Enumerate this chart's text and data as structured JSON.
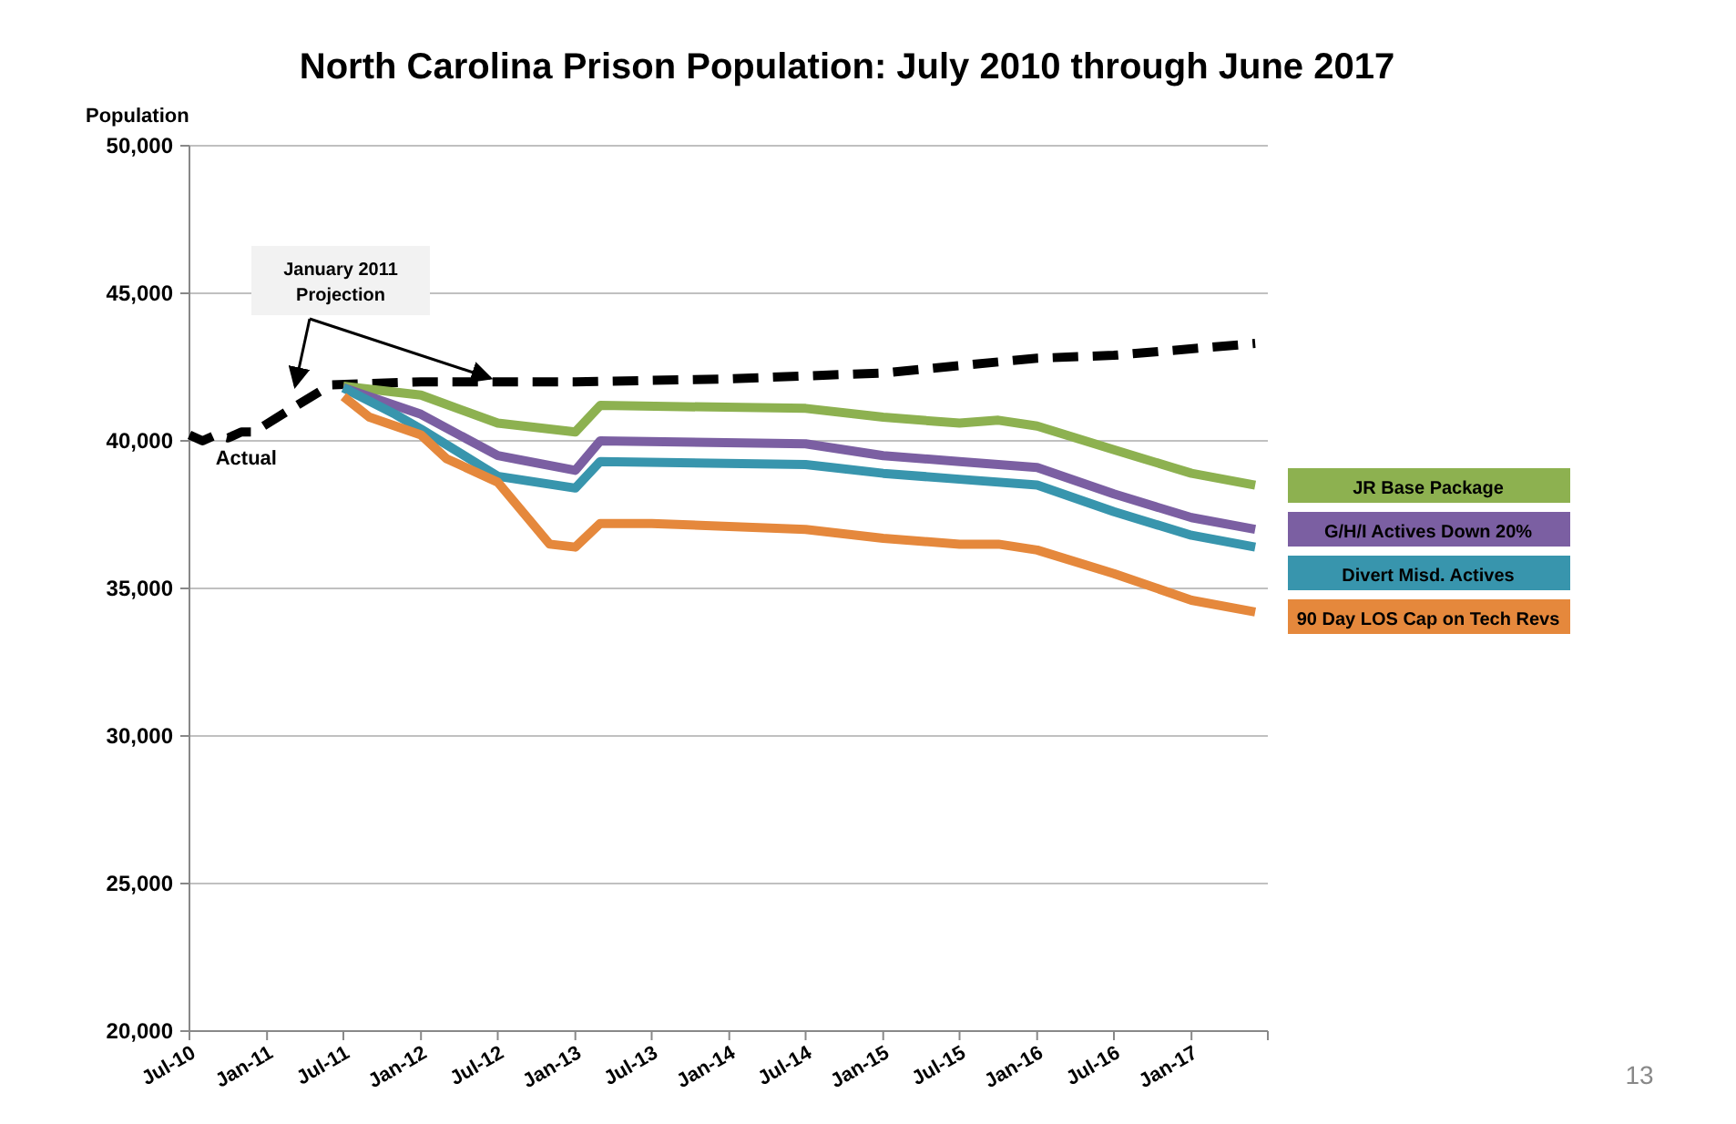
{
  "chart_data": {
    "type": "line",
    "title": "North Carolina Prison Population: July 2010 through June 2017",
    "ylabel": "Population",
    "xlim": [
      "2010-07",
      "2017-07"
    ],
    "xticks": [
      {
        "value": "2010-07",
        "label": "Jul-10"
      },
      {
        "value": "2011-01",
        "label": "Jan-11"
      },
      {
        "value": "2011-07",
        "label": "Jul-11"
      },
      {
        "value": "2012-01",
        "label": "Jan-12"
      },
      {
        "value": "2012-07",
        "label": "Jul-12"
      },
      {
        "value": "2013-01",
        "label": "Jan-13"
      },
      {
        "value": "2013-07",
        "label": "Jul-13"
      },
      {
        "value": "2014-01",
        "label": "Jan-14"
      },
      {
        "value": "2014-07",
        "label": "Jul-14"
      },
      {
        "value": "2015-01",
        "label": "Jan-15"
      },
      {
        "value": "2015-07",
        "label": "Jul-15"
      },
      {
        "value": "2016-01",
        "label": "Jan-16"
      },
      {
        "value": "2016-07",
        "label": "Jul-16"
      },
      {
        "value": "2017-01",
        "label": "Jan-17"
      },
      {
        "value": "2017-07",
        "label": null
      }
    ],
    "ylim": [
      20000,
      50000
    ],
    "yticks": [
      {
        "value": 20000,
        "label": "20,000"
      },
      {
        "value": 25000,
        "label": "25,000"
      },
      {
        "value": 30000,
        "label": "30,000"
      },
      {
        "value": 35000,
        "label": "35,000"
      },
      {
        "value": 40000,
        "label": "40,000"
      },
      {
        "value": 45000,
        "label": "45,000"
      },
      {
        "value": 50000,
        "label": "50,000"
      }
    ],
    "grid": "y",
    "legend": "right",
    "series": [
      {
        "color": "#000000",
        "line_style": "dashed",
        "x": [
          "2010-07",
          "2010-08",
          "2010-09",
          "2010-10",
          "2010-11",
          "2010-12",
          "2011-03",
          "2011-06",
          "2012-01",
          "2013-01",
          "2014-01",
          "2015-01",
          "2016-01",
          "2016-07",
          "2017-06"
        ],
        "values": [
          40200,
          40000,
          40200,
          40100,
          40300,
          40300,
          41100,
          41900,
          42000,
          42000,
          42100,
          42300,
          42800,
          42900,
          43300
        ]
      },
      {
        "name": "JR Base Package",
        "color": "#8db150",
        "line_style": "solid",
        "x": [
          "2011-07",
          "2012-01",
          "2012-07",
          "2013-01",
          "2013-03",
          "2014-07",
          "2015-01",
          "2015-07",
          "2015-10",
          "2016-01",
          "2016-07",
          "2017-01",
          "2017-06"
        ],
        "values": [
          41850,
          41550,
          40600,
          40300,
          41200,
          41100,
          40800,
          40600,
          40700,
          40500,
          39700,
          38900,
          38500
        ]
      },
      {
        "name": "G/H/I Actives Down 20%",
        "color": "#7b5fa2",
        "line_style": "solid",
        "x": [
          "2011-07",
          "2012-01",
          "2012-07",
          "2013-01",
          "2013-03",
          "2014-07",
          "2015-01",
          "2015-07",
          "2016-01",
          "2016-07",
          "2017-01",
          "2017-06"
        ],
        "values": [
          41800,
          40900,
          39500,
          39000,
          40000,
          39900,
          39500,
          39300,
          39100,
          38200,
          37400,
          37000
        ]
      },
      {
        "name": "Divert Misd. Actives",
        "color": "#3895ad",
        "line_style": "solid",
        "x": [
          "2011-07",
          "2011-11",
          "2012-01",
          "2012-07",
          "2013-01",
          "2013-03",
          "2014-07",
          "2015-01",
          "2015-07",
          "2016-01",
          "2016-07",
          "2017-01",
          "2017-06"
        ],
        "values": [
          41800,
          40900,
          40400,
          38800,
          38400,
          39300,
          39200,
          38900,
          38700,
          38500,
          37600,
          36800,
          36400
        ]
      },
      {
        "name": "90 Day LOS Cap on Tech Revs",
        "color": "#e5883c",
        "line_style": "solid",
        "x": [
          "2011-07",
          "2011-09",
          "2012-01",
          "2012-03",
          "2012-07",
          "2012-11",
          "2013-01",
          "2013-03",
          "2013-07",
          "2014-01",
          "2014-07",
          "2015-01",
          "2015-07",
          "2015-10",
          "2016-01",
          "2016-07",
          "2017-01",
          "2017-06"
        ],
        "values": [
          41500,
          40800,
          40200,
          39400,
          38600,
          36500,
          36400,
          37200,
          37200,
          37100,
          37000,
          36700,
          36500,
          36500,
          36300,
          35500,
          34600,
          34200
        ]
      }
    ],
    "annotations": [
      {
        "text": "January 2011 Projection",
        "x": "2012-07",
        "y": 42000
      },
      {
        "text": "Actual",
        "x": "2010-09",
        "y": 40200
      },
      "13"
    ]
  }
}
